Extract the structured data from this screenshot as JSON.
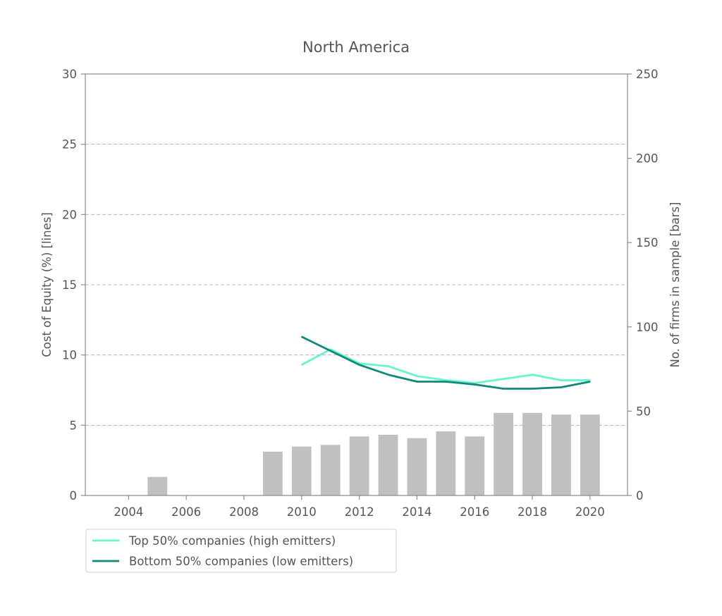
{
  "chart_data": {
    "type": "bar+line",
    "title": "North America",
    "x_range": [
      2002.5,
      2021.3
    ],
    "x_ticks": [
      2004,
      2006,
      2008,
      2010,
      2012,
      2014,
      2016,
      2018,
      2020
    ],
    "left_axis": {
      "label": "Cost of Equity (%) [lines]",
      "ylim": [
        0,
        30
      ],
      "ticks": [
        0,
        5,
        10,
        15,
        20,
        25,
        30
      ]
    },
    "right_axis": {
      "label": "No. of firms in sample [bars]",
      "ylim": [
        0,
        250
      ],
      "ticks": [
        0,
        50,
        100,
        150,
        200,
        250
      ]
    },
    "grid": "horizontal dashed at left-axis ticks",
    "bars": {
      "color": "#bfc0c2",
      "x": [
        2005,
        2009,
        2010,
        2011,
        2012,
        2013,
        2014,
        2015,
        2016,
        2017,
        2018,
        2019,
        2020
      ],
      "values": [
        11,
        26,
        29,
        30,
        35,
        36,
        34,
        38,
        35,
        49,
        49,
        48,
        48
      ]
    },
    "series": [
      {
        "name": "Top 50% companies (high emitters)",
        "color": "#66f5cc",
        "x": [
          2010,
          2011,
          2012,
          2013,
          2014,
          2015,
          2016,
          2017,
          2018,
          2019,
          2020
        ],
        "values": [
          9.3,
          10.4,
          9.4,
          9.2,
          8.5,
          8.2,
          8.0,
          8.3,
          8.6,
          8.2,
          8.2
        ]
      },
      {
        "name": "Bottom 50% companies (low emitters)",
        "color": "#10897a",
        "x": [
          2010,
          2011,
          2012,
          2013,
          2014,
          2015,
          2016,
          2017,
          2018,
          2019,
          2020
        ],
        "values": [
          11.3,
          10.3,
          9.3,
          8.6,
          8.1,
          8.1,
          7.9,
          7.6,
          7.6,
          7.7,
          8.1
        ]
      }
    ],
    "legend_position": "bottom-left, below plot"
  }
}
